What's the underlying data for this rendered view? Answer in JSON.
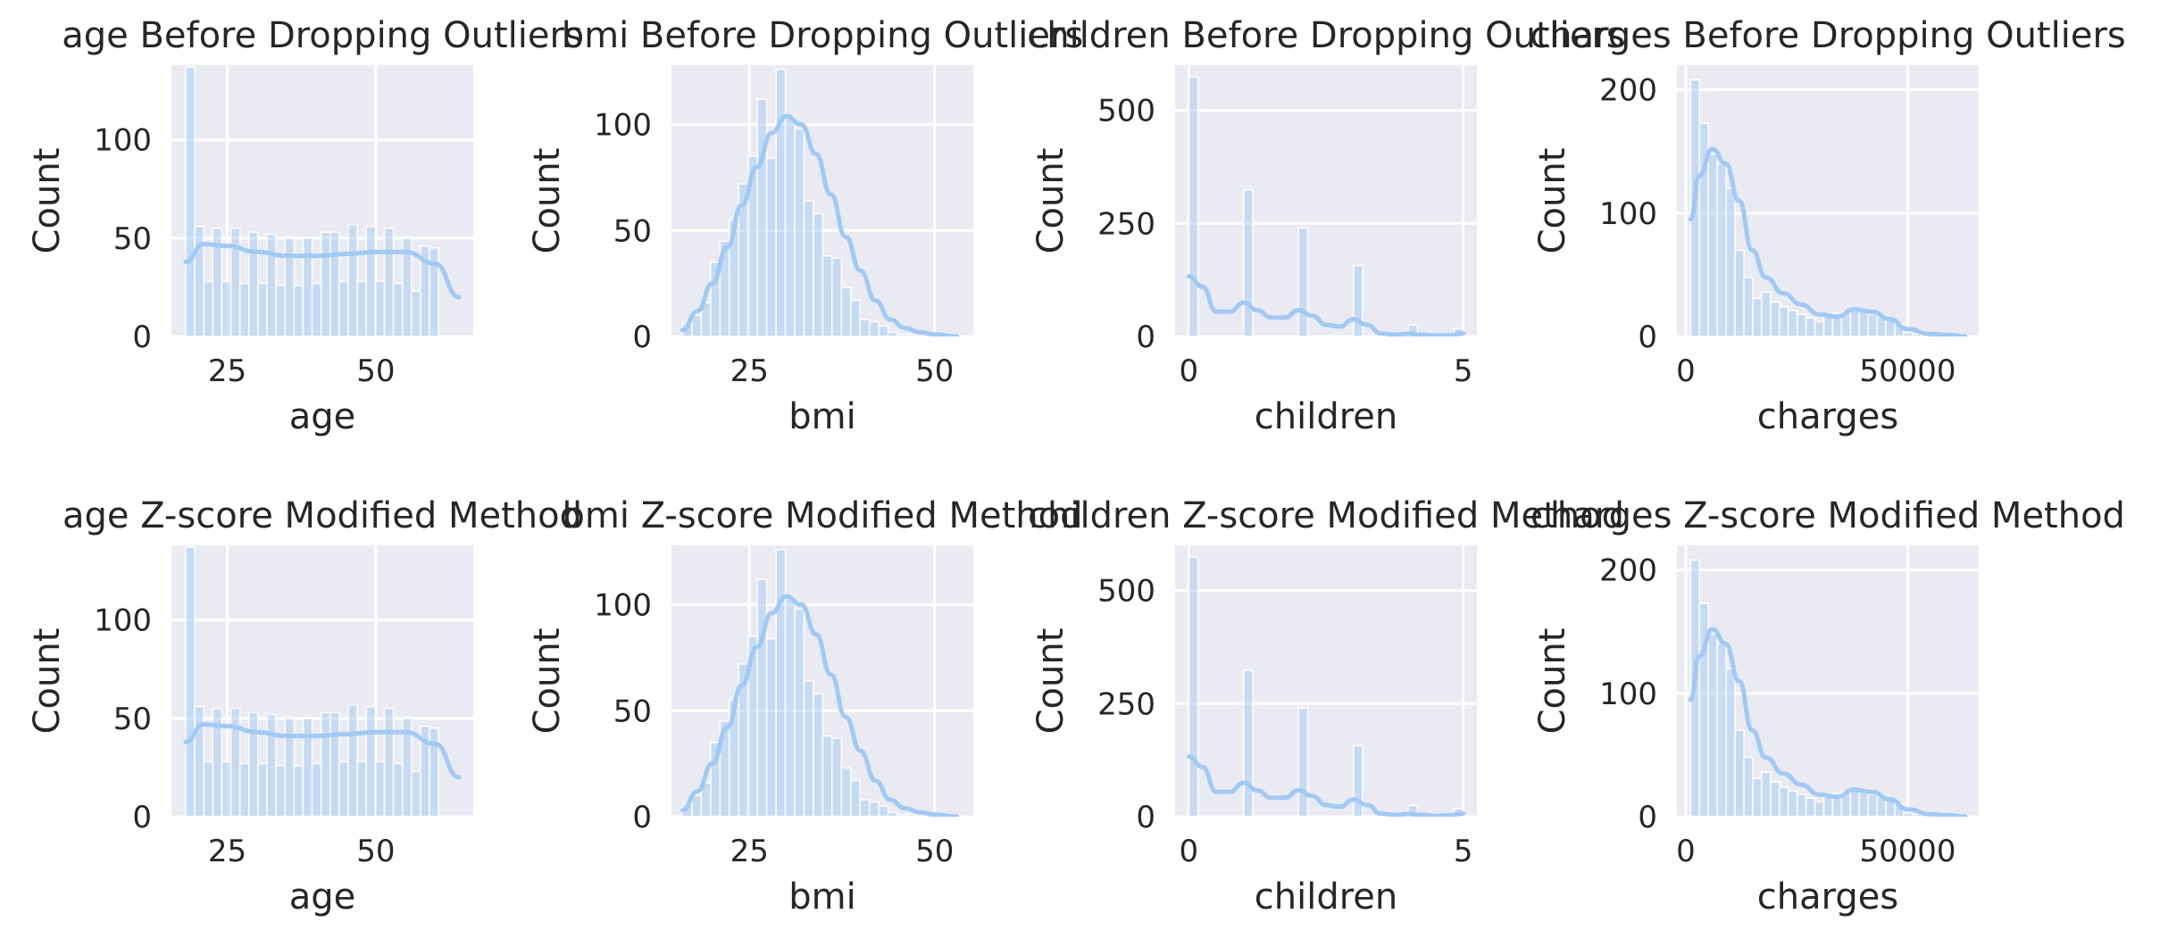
{
  "colors": {
    "panel_bg": "#eaeaf2",
    "grid": "#ffffff",
    "bar_fill": "#a1c9f4",
    "kde_line": "#a1c9f4",
    "text": "#262626"
  },
  "chart_data": [
    {
      "type": "bar",
      "title": "age Before Dropping Outliers",
      "xlabel": "age",
      "ylabel": "Count",
      "xlim": [
        15.6,
        66.4
      ],
      "ylim": [
        0,
        138
      ],
      "xticks": [
        25,
        50
      ],
      "yticks": [
        0,
        50,
        100
      ],
      "bins": {
        "start": 18,
        "width": 1.52,
        "values": [
          137,
          56,
          28,
          55,
          28,
          55,
          27,
          53,
          27,
          52,
          26,
          50,
          26,
          50,
          27,
          53,
          53,
          28,
          57,
          28,
          56,
          28,
          55,
          27,
          50,
          23,
          46,
          45
        ]
      },
      "kde": {
        "x": [
          18,
          21,
          25,
          30,
          35,
          40,
          45,
          50,
          55,
          60,
          64
        ],
        "y": [
          38,
          47,
          46,
          43,
          41,
          41,
          42,
          43,
          43,
          37,
          20
        ]
      }
    },
    {
      "type": "bar",
      "title": "bmi Before Dropping Outliers",
      "xlabel": "bmi",
      "ylabel": "Count",
      "xlim": [
        14.5,
        55.2
      ],
      "ylim": [
        0,
        128
      ],
      "xticks": [
        25,
        50
      ],
      "yticks": [
        0,
        50,
        100
      ],
      "bins": {
        "start": 16,
        "width": 1.26,
        "values": [
          6,
          10,
          16,
          35,
          45,
          55,
          72,
          85,
          112,
          84,
          126,
          104,
          98,
          64,
          58,
          38,
          37,
          23,
          17,
          8,
          7,
          5,
          2,
          1,
          1,
          0,
          0,
          1
        ]
      },
      "kde": {
        "x": [
          16,
          18,
          20,
          22,
          24,
          26,
          28,
          30,
          32,
          34,
          36,
          38,
          40,
          42,
          44,
          46,
          48,
          50,
          53
        ],
        "y": [
          3,
          12,
          25,
          42,
          62,
          80,
          96,
          104,
          100,
          86,
          67,
          47,
          31,
          17,
          8,
          4,
          2,
          1,
          0
        ]
      }
    },
    {
      "type": "bar",
      "title": "children Before Dropping Outliers",
      "xlabel": "children",
      "ylabel": "Count",
      "xlim": [
        -0.25,
        5.25
      ],
      "ylim": [
        0,
        600
      ],
      "xticks": [
        0,
        5
      ],
      "yticks": [
        0,
        250,
        500
      ],
      "bins": {
        "start": 0,
        "width": 0.1667,
        "values": [
          574,
          0,
          0,
          0,
          0,
          0,
          324,
          0,
          0,
          0,
          0,
          0,
          240,
          0,
          0,
          0,
          0,
          0,
          157,
          0,
          0,
          0,
          0,
          0,
          25,
          0,
          0,
          0,
          0,
          18
        ]
      },
      "kde": {
        "x": [
          0,
          0.25,
          0.5,
          0.75,
          1,
          1.25,
          1.5,
          1.75,
          2,
          2.25,
          2.5,
          2.75,
          3,
          3.25,
          3.5,
          3.75,
          4,
          4.25,
          4.5,
          4.75,
          5
        ],
        "y": [
          133,
          110,
          55,
          55,
          75,
          58,
          42,
          42,
          58,
          46,
          26,
          22,
          38,
          26,
          7,
          4,
          6,
          4,
          2,
          3,
          7
        ]
      }
    },
    {
      "type": "bar",
      "title": "charges Before Dropping Outliers",
      "xlabel": "charges",
      "ylabel": "Count",
      "xlim": [
        -2000,
        66000
      ],
      "ylim": [
        0,
        220
      ],
      "xticks": [
        0,
        50000
      ],
      "yticks": [
        0,
        100,
        200
      ],
      "bins": {
        "start": 1100,
        "width": 2000,
        "values": [
          208,
          173,
          148,
          140,
          120,
          70,
          48,
          31,
          36,
          28,
          24,
          21,
          18,
          15,
          12,
          17,
          19,
          20,
          22,
          20,
          18,
          16,
          14,
          10,
          3,
          2,
          1,
          1,
          0,
          1
        ]
      },
      "kde": {
        "x": [
          1100,
          3000,
          6000,
          9000,
          12000,
          15000,
          18000,
          22000,
          26000,
          30000,
          34000,
          38000,
          42000,
          46000,
          50000,
          55000,
          60000,
          63000
        ],
        "y": [
          95,
          130,
          152,
          140,
          110,
          70,
          48,
          35,
          26,
          18,
          16,
          22,
          20,
          14,
          6,
          2,
          1,
          0
        ]
      }
    },
    {
      "type": "bar",
      "title": "age  Z-score Modified Method",
      "xlabel": "age",
      "ylabel": "Count",
      "xlim": [
        15.6,
        66.4
      ],
      "ylim": [
        0,
        138
      ],
      "xticks": [
        25,
        50
      ],
      "yticks": [
        0,
        50,
        100
      ],
      "bins": {
        "start": 18,
        "width": 1.52,
        "values": [
          137,
          56,
          28,
          55,
          28,
          55,
          27,
          53,
          27,
          52,
          26,
          50,
          26,
          50,
          27,
          53,
          53,
          28,
          57,
          28,
          56,
          28,
          55,
          27,
          50,
          23,
          46,
          45
        ]
      },
      "kde": {
        "x": [
          18,
          21,
          25,
          30,
          35,
          40,
          45,
          50,
          55,
          60,
          64
        ],
        "y": [
          38,
          47,
          46,
          43,
          41,
          41,
          42,
          43,
          43,
          37,
          20
        ]
      }
    },
    {
      "type": "bar",
      "title": "bmi  Z-score Modified Method",
      "xlabel": "bmi",
      "ylabel": "Count",
      "xlim": [
        14.5,
        55.2
      ],
      "ylim": [
        0,
        128
      ],
      "xticks": [
        25,
        50
      ],
      "yticks": [
        0,
        50,
        100
      ],
      "bins": {
        "start": 16,
        "width": 1.26,
        "values": [
          6,
          10,
          16,
          35,
          45,
          55,
          72,
          85,
          112,
          84,
          126,
          104,
          98,
          64,
          58,
          38,
          37,
          23,
          17,
          8,
          7,
          5,
          2,
          1,
          1,
          0,
          0,
          1
        ]
      },
      "kde": {
        "x": [
          16,
          18,
          20,
          22,
          24,
          26,
          28,
          30,
          32,
          34,
          36,
          38,
          40,
          42,
          44,
          46,
          48,
          50,
          53
        ],
        "y": [
          3,
          12,
          25,
          42,
          62,
          80,
          96,
          104,
          100,
          86,
          67,
          47,
          31,
          17,
          8,
          4,
          2,
          1,
          0
        ]
      }
    },
    {
      "type": "bar",
      "title": "children  Z-score Modified Method",
      "xlabel": "children",
      "ylabel": "Count",
      "xlim": [
        -0.25,
        5.25
      ],
      "ylim": [
        0,
        600
      ],
      "xticks": [
        0,
        5
      ],
      "yticks": [
        0,
        250,
        500
      ],
      "bins": {
        "start": 0,
        "width": 0.1667,
        "values": [
          574,
          0,
          0,
          0,
          0,
          0,
          324,
          0,
          0,
          0,
          0,
          0,
          240,
          0,
          0,
          0,
          0,
          0,
          157,
          0,
          0,
          0,
          0,
          0,
          25,
          0,
          0,
          0,
          0,
          18
        ]
      },
      "kde": {
        "x": [
          0,
          0.25,
          0.5,
          0.75,
          1,
          1.25,
          1.5,
          1.75,
          2,
          2.25,
          2.5,
          2.75,
          3,
          3.25,
          3.5,
          3.75,
          4,
          4.25,
          4.5,
          4.75,
          5
        ],
        "y": [
          133,
          110,
          55,
          55,
          75,
          58,
          42,
          42,
          58,
          46,
          26,
          22,
          38,
          26,
          7,
          4,
          6,
          4,
          2,
          3,
          7
        ]
      }
    },
    {
      "type": "bar",
      "title": "charges  Z-score Modified Method",
      "xlabel": "charges",
      "ylabel": "Count",
      "xlim": [
        -2000,
        66000
      ],
      "ylim": [
        0,
        220
      ],
      "xticks": [
        0,
        50000
      ],
      "yticks": [
        0,
        100,
        200
      ],
      "bins": {
        "start": 1100,
        "width": 2000,
        "values": [
          208,
          173,
          148,
          140,
          120,
          70,
          48,
          31,
          36,
          28,
          24,
          21,
          18,
          15,
          12,
          17,
          19,
          20,
          22,
          20,
          18,
          16,
          14,
          10,
          3,
          2,
          1,
          1,
          0,
          1
        ]
      },
      "kde": {
        "x": [
          1100,
          3000,
          6000,
          9000,
          12000,
          15000,
          18000,
          22000,
          26000,
          30000,
          34000,
          38000,
          42000,
          46000,
          50000,
          55000,
          60000,
          63000
        ],
        "y": [
          95,
          130,
          152,
          140,
          110,
          70,
          48,
          35,
          26,
          18,
          16,
          22,
          20,
          14,
          6,
          2,
          1,
          0
        ]
      }
    }
  ]
}
